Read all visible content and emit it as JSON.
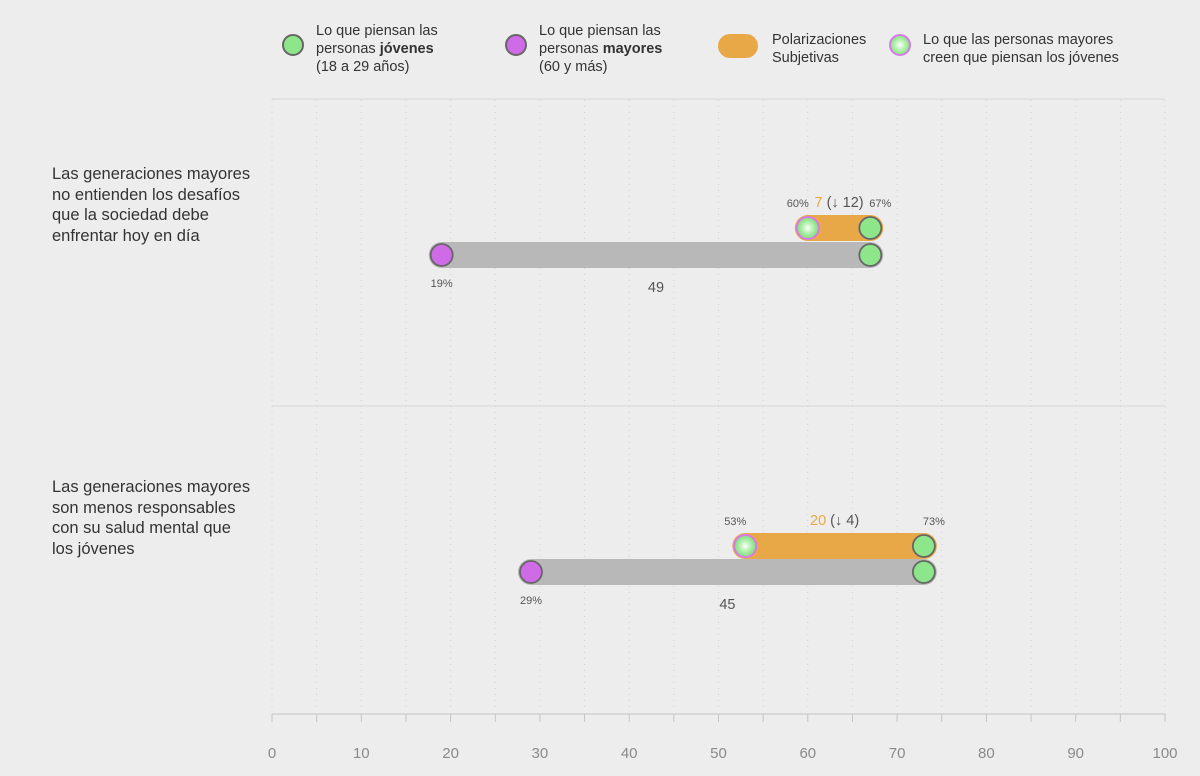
{
  "legend": {
    "young": {
      "line1": "Lo que piensan las",
      "line2a": "personas ",
      "line2b": "jóvenes",
      "line3": "(18 a 29 años)"
    },
    "old": {
      "line1": "Lo que piensan las",
      "line2a": "personas ",
      "line2b": "mayores",
      "line3": "(60 y más)"
    },
    "polar": {
      "line1": "Polarizaciones",
      "line2": "Subjetivas"
    },
    "perceived": {
      "line1": "Lo que las personas mayores",
      "line2": "creen que piensan los jóvenes"
    }
  },
  "colors": {
    "young": "#8ee68a",
    "old": "#d06be8",
    "polarization": "#e8a848",
    "gap_bar": "#b8b8b8",
    "perceived_ring": "#d878ea"
  },
  "chart_data": {
    "type": "dumbbell",
    "title": "",
    "xlabel": "",
    "ylabel": "",
    "xlim": [
      0,
      100
    ],
    "x_ticks": [
      "0",
      "10",
      "20",
      "30",
      "40",
      "50",
      "60",
      "70",
      "80",
      "90",
      "100"
    ],
    "grid": "dotted vertical",
    "legend_position": "top",
    "series": [
      {
        "name": "Lo que piensan las personas jóvenes (18 a 29 años)"
      },
      {
        "name": "Lo que piensan las personas mayores (60 y más)"
      },
      {
        "name": "Polarizaciones Subjetivas"
      },
      {
        "name": "Lo que las personas mayores creen que piensan los jóvenes"
      }
    ],
    "rows": [
      {
        "label": "Las generaciones mayores no entienden los desafíos que la sociedad debe enfrentar hoy en día",
        "young": 67,
        "old": 19,
        "perceived": 60,
        "young_label": "67%",
        "old_label": "19%",
        "perceived_label": "60%",
        "gap_label": "49",
        "polar_value": "7",
        "polar_change": "(↓ 12)"
      },
      {
        "label": "Las generaciones mayores son menos responsables con su salud mental que los jóvenes",
        "young": 73,
        "old": 29,
        "perceived": 53,
        "young_label": "73%",
        "old_label": "29%",
        "perceived_label": "53%",
        "gap_label": "45",
        "polar_value": "20",
        "polar_change": "(↓ 4)"
      }
    ]
  }
}
